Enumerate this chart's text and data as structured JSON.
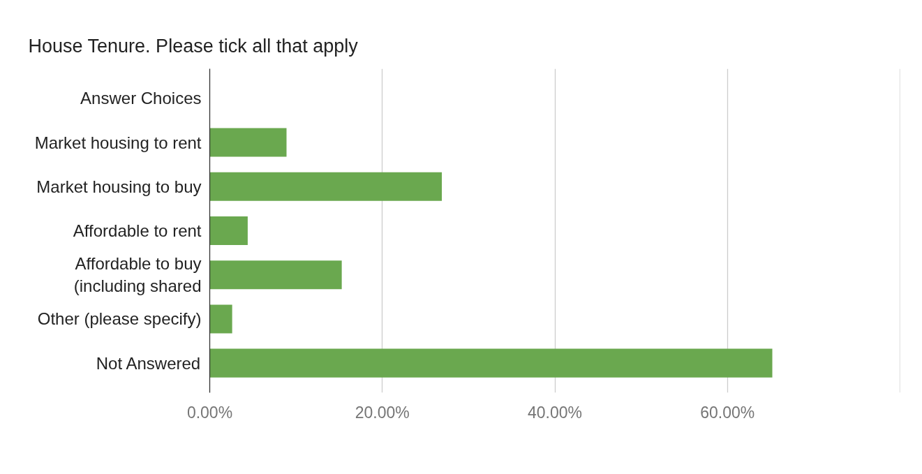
{
  "chart_data": {
    "type": "bar",
    "orientation": "horizontal",
    "title": "House Tenure.  Please tick all that apply",
    "categories": [
      "Answer Choices",
      "Market housing to rent",
      "Market housing to buy",
      "Affordable to rent",
      "Affordable to buy (including shared",
      "Other (please specify)",
      "Not Answered"
    ],
    "series": [
      {
        "color": "#6aa84f",
        "values": [
          null,
          8.9,
          26.9,
          4.4,
          15.3,
          2.6,
          65.2
        ]
      }
    ],
    "xlim": [
      0,
      80
    ],
    "xticks": [
      {
        "value": 0,
        "label": "0.00%"
      },
      {
        "value": 20,
        "label": "20.00%"
      },
      {
        "value": 40,
        "label": "40.00%"
      },
      {
        "value": 60,
        "label": "60.00%"
      },
      {
        "value": 80,
        "label": null
      }
    ],
    "grid": "x"
  }
}
